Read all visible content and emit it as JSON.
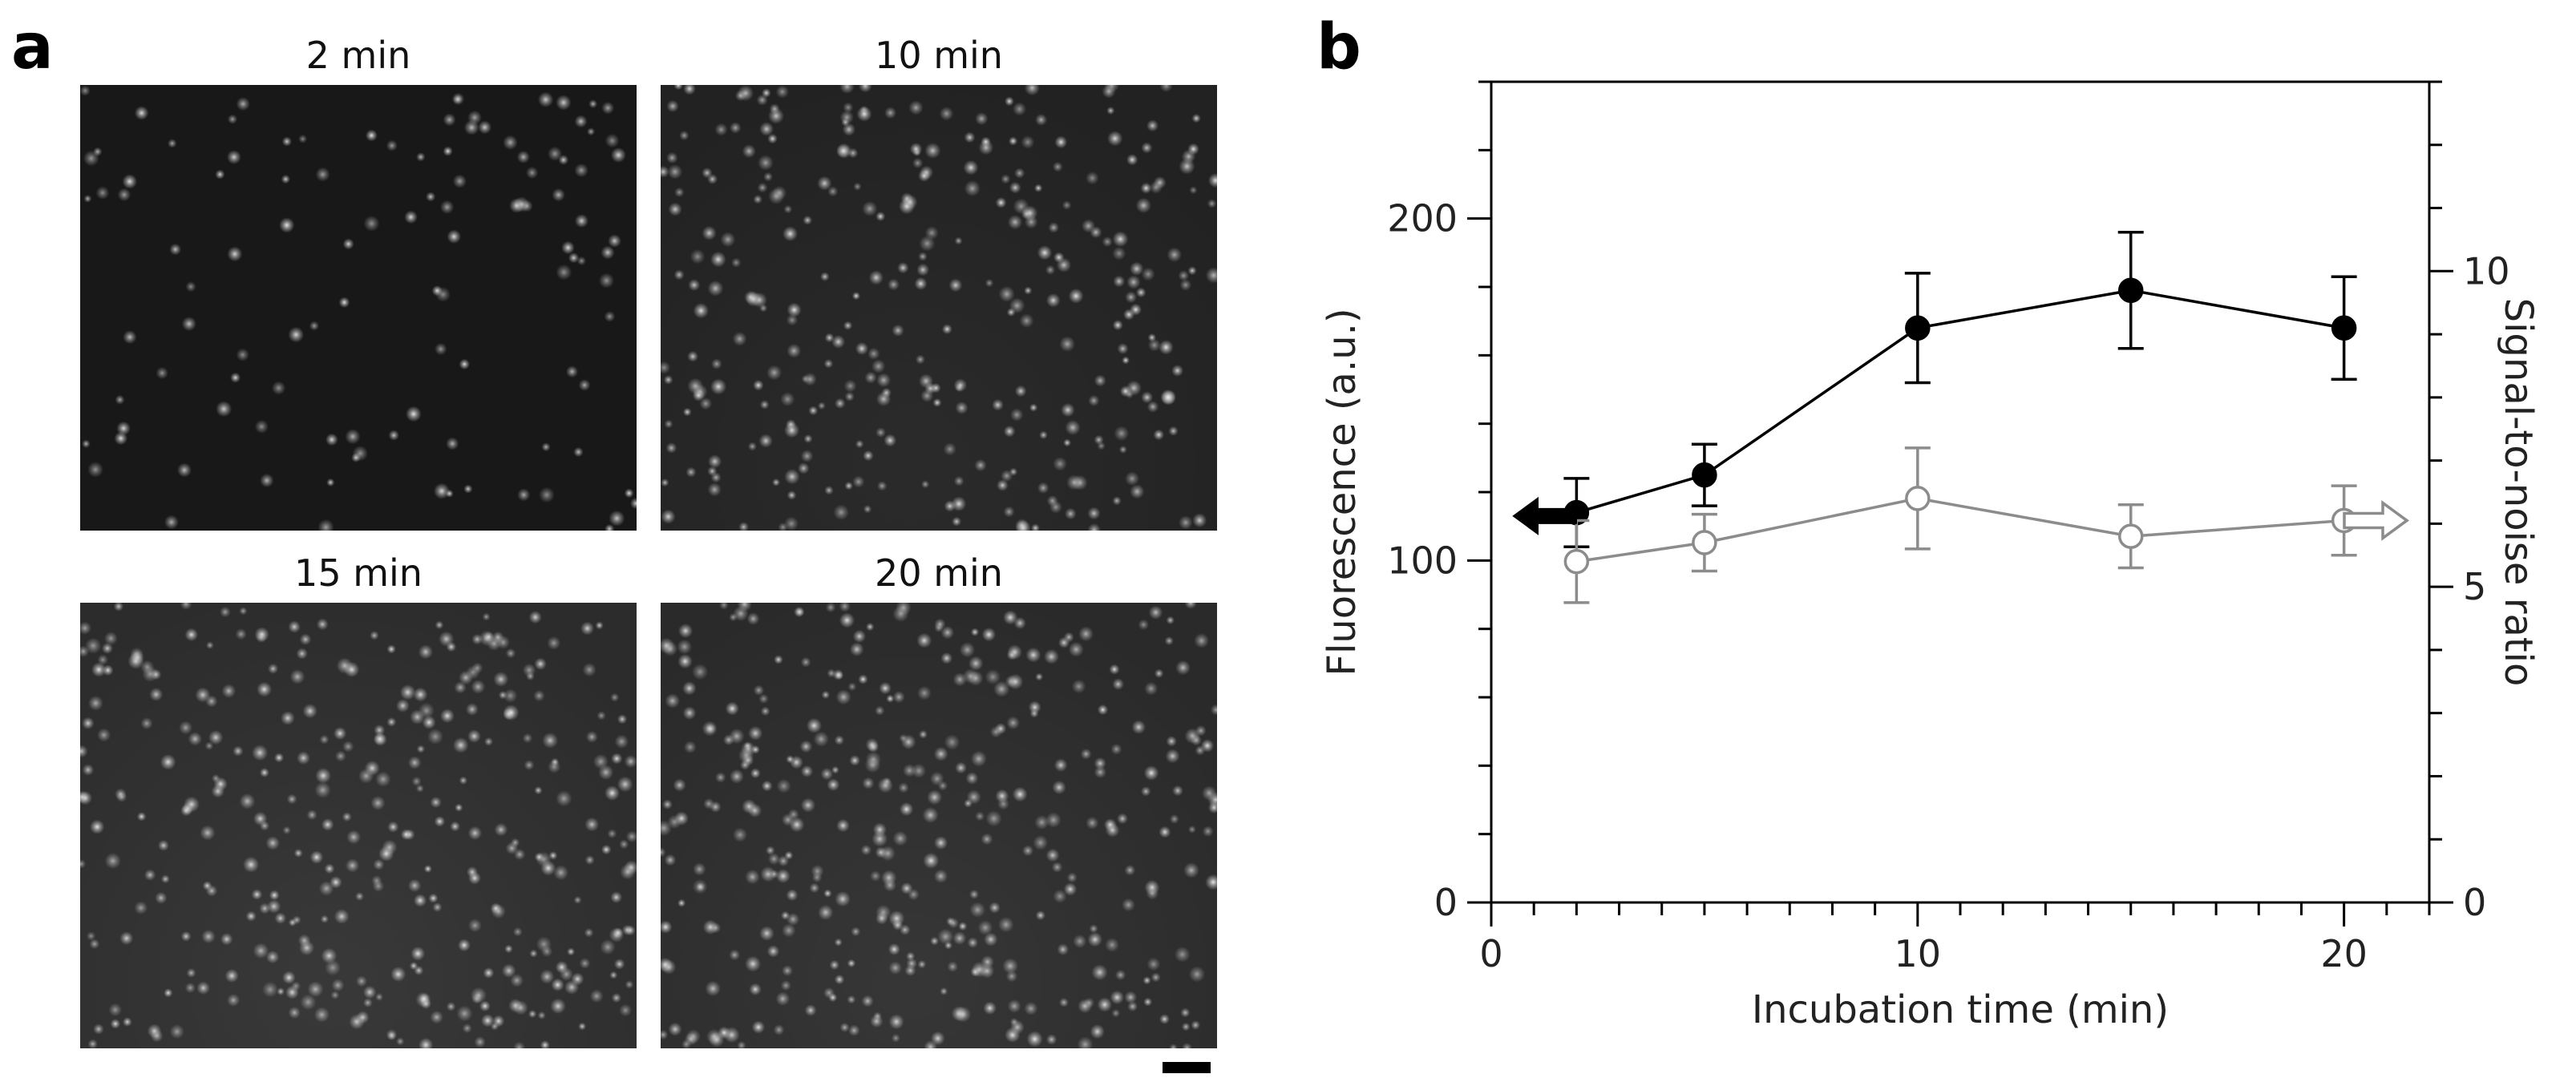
{
  "panel_a": {
    "letter": "a",
    "images": [
      {
        "title": "2 min",
        "brightness": 0.04,
        "spots": 110,
        "halo": 0.0
      },
      {
        "title": "10 min",
        "brightness": 0.1,
        "spots": 300,
        "halo": 0.35
      },
      {
        "title": "15 min",
        "brightness": 0.16,
        "spots": 330,
        "halo": 0.65
      },
      {
        "title": "20 min",
        "brightness": 0.15,
        "spots": 360,
        "halo": 0.6
      }
    ]
  },
  "panel_b": {
    "letter": "b"
  },
  "chart_data": {
    "type": "line",
    "xlabel": "Incubation time (min)",
    "ylabel_left": "Fluorescence (a.u.)",
    "ylabel_right": "Signal-to-noise ratio",
    "xlim": [
      0,
      22
    ],
    "ylim_left": [
      0,
      240
    ],
    "ylim_right": [
      0,
      13
    ],
    "xticks": [
      0,
      10,
      20
    ],
    "yticks_left": [
      0,
      100,
      200
    ],
    "yticks_right": [
      0,
      5,
      10
    ],
    "grid": false,
    "series": [
      {
        "axis": "left",
        "marker": "filled-circle",
        "color": "#000000",
        "x": [
          2,
          5,
          10,
          15,
          20
        ],
        "y": [
          114,
          125,
          168,
          179,
          168
        ],
        "err": [
          10,
          9,
          16,
          17,
          15
        ]
      },
      {
        "axis": "right",
        "marker": "open-circle",
        "color": "#8c8c8c",
        "x": [
          2,
          5,
          10,
          15,
          20
        ],
        "y": [
          5.4,
          5.7,
          6.4,
          5.8,
          6.05
        ],
        "err": [
          0.65,
          0.45,
          0.8,
          0.5,
          0.55
        ]
      }
    ],
    "annotations": [
      {
        "type": "arrow-left",
        "style": "filled",
        "axis": "left",
        "y": 113
      },
      {
        "type": "arrow-right",
        "style": "open",
        "axis": "right",
        "y": 6.05
      }
    ]
  }
}
